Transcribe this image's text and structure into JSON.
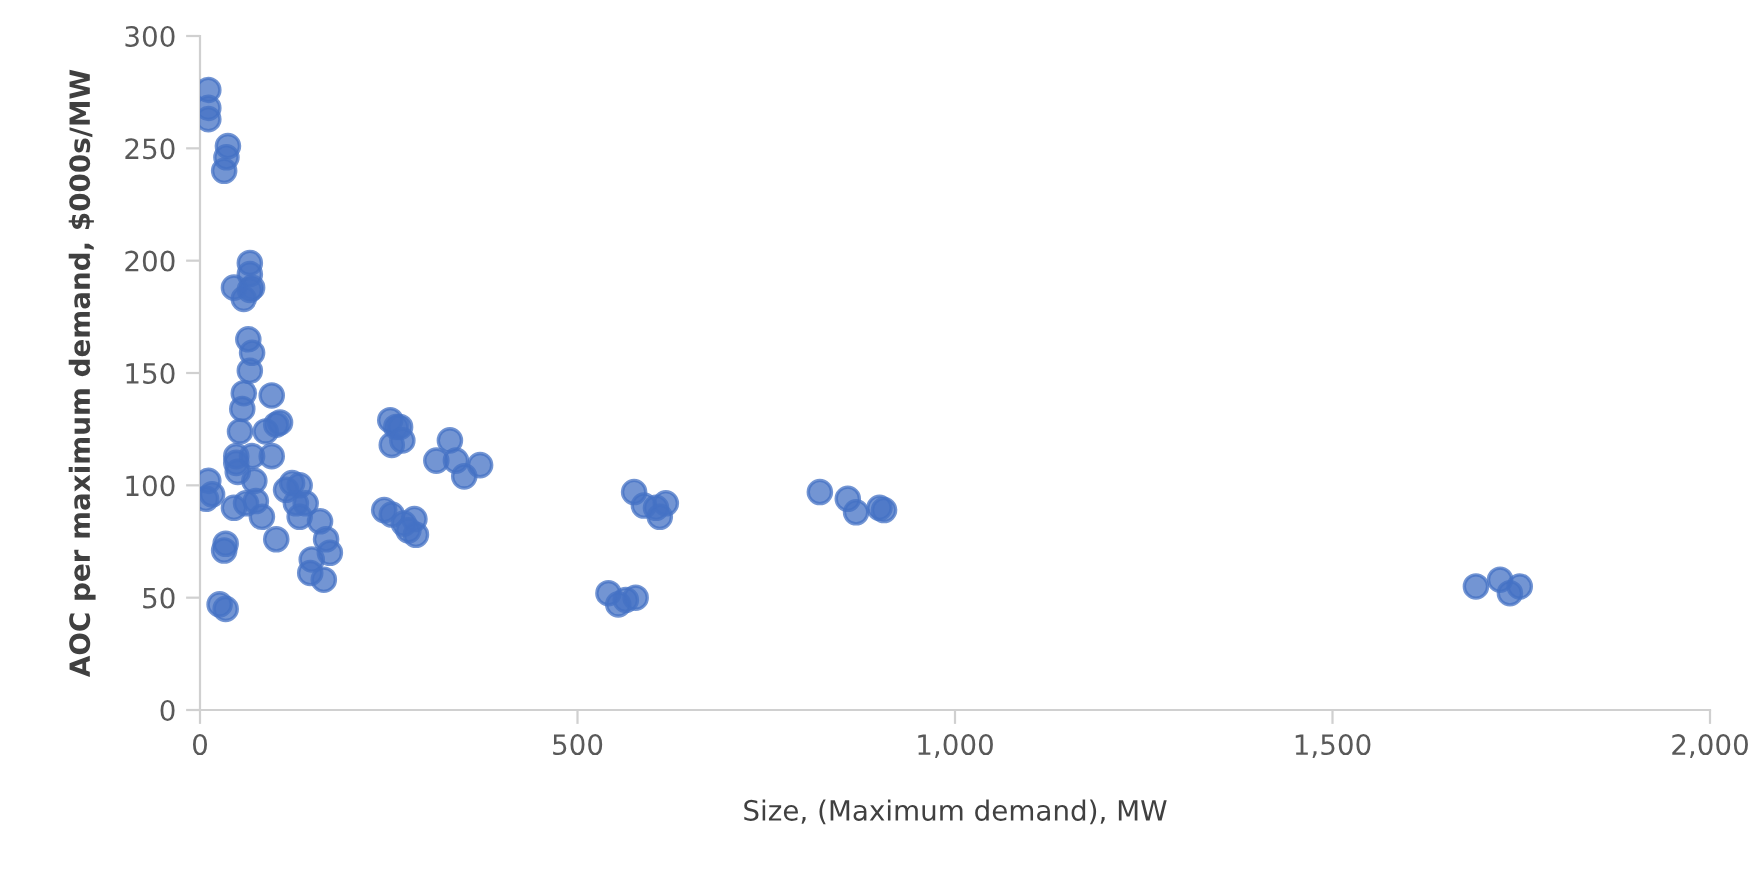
{
  "chart_data": {
    "type": "scatter",
    "xlabel": "Size, (Maximum demand), MW",
    "ylabel": "AOC per maximum demand, $000s/MW",
    "xlim": [
      0,
      2000
    ],
    "xticks": [
      0,
      {
        "value": 500,
        "label": "500"
      },
      {
        "value": 1000,
        "label": "1,000"
      },
      {
        "value": 1500,
        "label": "1,500"
      },
      {
        "value": 2000,
        "label": "2,000"
      }
    ],
    "ylim": [
      0,
      300
    ],
    "yticks": [
      0,
      50,
      100,
      150,
      200,
      250,
      300
    ],
    "grid": false,
    "marker": "circle",
    "series": [
      {
        "color": "#4472c4",
        "x": [
          11,
          11,
          11,
          37,
          35,
          32,
          11,
          16,
          8,
          26,
          34,
          32,
          34,
          66,
          66,
          69,
          58,
          66,
          45,
          64,
          69,
          66,
          58,
          95,
          56,
          53,
          48,
          50,
          48,
          69,
          72,
          74,
          82,
          101,
          106,
          87,
          101,
          95,
          122,
          132,
          114,
          127,
          140,
          132,
          148,
          146,
          164,
          159,
          167,
          172,
          45,
          61,
          252,
          260,
          265,
          254,
          268,
          244,
          254,
          270,
          284,
          286,
          276,
          313,
          331,
          339,
          350,
          371,
          575,
          588,
          604,
          617,
          609,
          541,
          554,
          564,
          577,
          821,
          858,
          869,
          900,
          906,
          1690,
          1722,
          1735,
          1748
        ],
        "values": [
          276,
          268,
          263,
          251,
          246,
          240,
          102,
          96,
          94,
          47,
          45,
          71,
          74,
          199,
          194,
          188,
          183,
          187,
          188,
          165,
          159,
          151,
          141,
          140,
          134,
          124,
          113,
          106,
          110,
          113,
          102,
          93,
          86,
          76,
          128,
          124,
          127,
          113,
          101,
          100,
          98,
          92,
          92,
          86,
          67,
          61,
          58,
          84,
          76,
          70,
          90,
          92,
          129,
          126,
          126,
          118,
          120,
          89,
          87,
          83,
          85,
          78,
          80,
          111,
          120,
          111,
          104,
          109,
          97,
          91,
          90,
          92,
          86,
          52,
          47,
          49,
          50,
          97,
          94,
          88,
          90,
          89,
          55,
          58,
          52,
          55
        ]
      }
    ]
  }
}
